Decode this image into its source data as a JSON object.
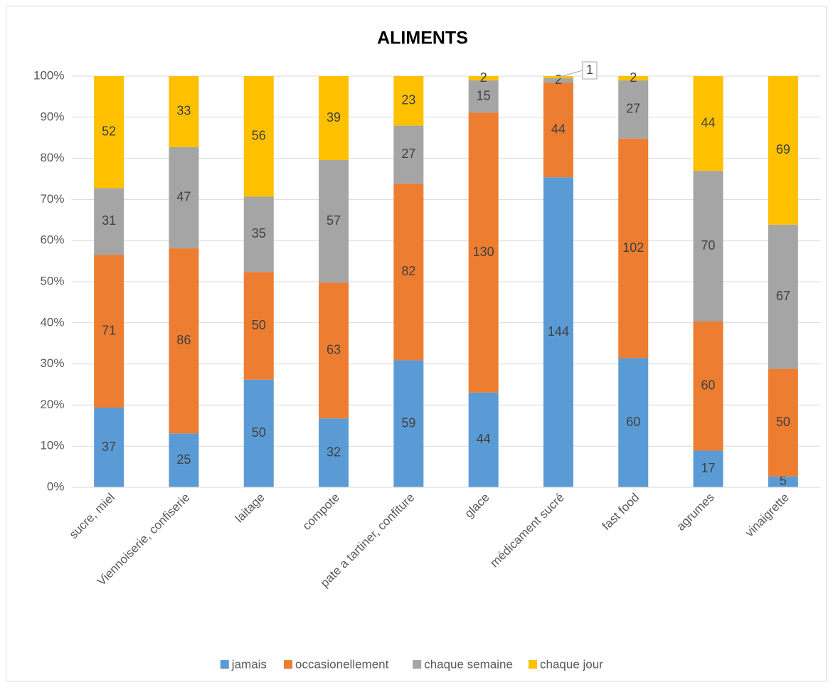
{
  "chart_data": {
    "type": "bar",
    "stacked": "percent",
    "title": "ALIMENTS",
    "categories": [
      "sucre, miel",
      "Viennoiserie, confiserie",
      "laitage",
      "compote",
      "pate a tartiner, confiture",
      "glace",
      "médicament sucré",
      "fast food",
      "agrumes",
      "vinaigrette"
    ],
    "series": [
      {
        "name": "jamais",
        "color": "#5b9bd5",
        "values": [
          37,
          25,
          50,
          32,
          59,
          44,
          144,
          60,
          17,
          5
        ]
      },
      {
        "name": "occasionellement",
        "color": "#ed7d31",
        "values": [
          71,
          86,
          50,
          63,
          82,
          130,
          44,
          102,
          60,
          50
        ]
      },
      {
        "name": "chaque semaine",
        "color": "#a5a5a5",
        "values": [
          31,
          47,
          35,
          57,
          27,
          15,
          2,
          27,
          70,
          67
        ]
      },
      {
        "name": "chaque jour",
        "color": "#ffc000",
        "values": [
          52,
          33,
          56,
          39,
          23,
          2,
          1,
          2,
          44,
          69
        ]
      }
    ],
    "ylim": [
      0,
      100
    ],
    "yticks": [
      {
        "value": 0,
        "label": "0%"
      },
      {
        "value": 10,
        "label": "10%"
      },
      {
        "value": 20,
        "label": "20%"
      },
      {
        "value": 30,
        "label": "30%"
      },
      {
        "value": 40,
        "label": "40%"
      },
      {
        "value": 50,
        "label": "50%"
      },
      {
        "value": 60,
        "label": "60%"
      },
      {
        "value": 70,
        "label": "70%"
      },
      {
        "value": 80,
        "label": "80%"
      },
      {
        "value": 90,
        "label": "90%"
      },
      {
        "value": 100,
        "label": "100%"
      }
    ],
    "grid": true,
    "legend": "bottom"
  }
}
